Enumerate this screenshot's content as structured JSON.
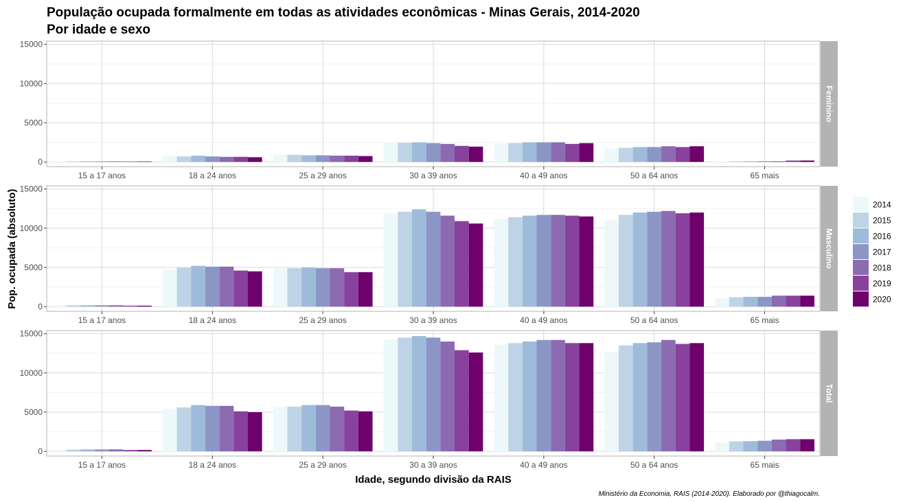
{
  "title_line1": "População ocupada formalmente em todas as atividades econômicas - Minas Gerais, 2014-2020",
  "title_line2": "Por idade e sexo",
  "caption": "Ministério da Economia, RAIS (2014-2020). Elaborado por @thiagocalm.",
  "chart_data": {
    "type": "bar",
    "xlabel": "Idade, segundo divisão da RAIS",
    "ylabel": "Pop. ocupada (absoluto)",
    "ylim": [
      -600,
      15400
    ],
    "yticks": [
      0,
      5000,
      10000,
      15000
    ],
    "grid": true,
    "legend_position": "right",
    "categories": [
      "15 a 17 anos",
      "18 a 24 anos",
      "25 a 29 anos",
      "30 a 39 anos",
      "40 a 49 anos",
      "50 a 64 anos",
      "65 mais"
    ],
    "series_names": [
      "2014",
      "2015",
      "2016",
      "2017",
      "2018",
      "2019",
      "2020"
    ],
    "colors": [
      "#edf8fb",
      "#bfd3e6",
      "#9ebcda",
      "#8c96c6",
      "#8c6bb1",
      "#88419d",
      "#6e016b"
    ],
    "panels": [
      {
        "label": "Feminino",
        "values": [
          [
            50,
            70,
            80,
            80,
            80,
            60,
            60
          ],
          [
            750,
            700,
            800,
            700,
            650,
            650,
            600
          ],
          [
            900,
            900,
            850,
            850,
            800,
            800,
            750
          ],
          [
            2500,
            2450,
            2500,
            2400,
            2300,
            2050,
            1950
          ],
          [
            2400,
            2400,
            2500,
            2500,
            2500,
            2300,
            2400
          ],
          [
            1700,
            1800,
            1900,
            1900,
            2000,
            1900,
            2000
          ],
          [
            70,
            80,
            90,
            100,
            100,
            180,
            180
          ]
        ]
      },
      {
        "label": "Masculino",
        "values": [
          [
            200,
            170,
            180,
            180,
            180,
            120,
            120
          ],
          [
            4700,
            5000,
            5200,
            5100,
            5100,
            4600,
            4500
          ],
          [
            4800,
            4900,
            5000,
            4900,
            4900,
            4400,
            4400
          ],
          [
            11900,
            12100,
            12400,
            12100,
            11600,
            10900,
            10600
          ],
          [
            11200,
            11400,
            11600,
            11700,
            11700,
            11600,
            11500
          ],
          [
            11000,
            11700,
            12000,
            12100,
            12200,
            11900,
            12000
          ],
          [
            1100,
            1200,
            1250,
            1250,
            1400,
            1400,
            1400
          ]
        ]
      },
      {
        "label": "Total",
        "values": [
          [
            250,
            230,
            250,
            250,
            250,
            170,
            170
          ],
          [
            5400,
            5600,
            5900,
            5800,
            5800,
            5100,
            5000
          ],
          [
            5700,
            5700,
            5900,
            5900,
            5700,
            5200,
            5100
          ],
          [
            14300,
            14500,
            14700,
            14500,
            14000,
            12900,
            12600
          ],
          [
            13600,
            13800,
            14000,
            14200,
            14200,
            13800,
            13800
          ],
          [
            12700,
            13500,
            13800,
            13900,
            14200,
            13700,
            13800
          ],
          [
            1150,
            1280,
            1300,
            1350,
            1500,
            1550,
            1550
          ]
        ]
      }
    ]
  }
}
